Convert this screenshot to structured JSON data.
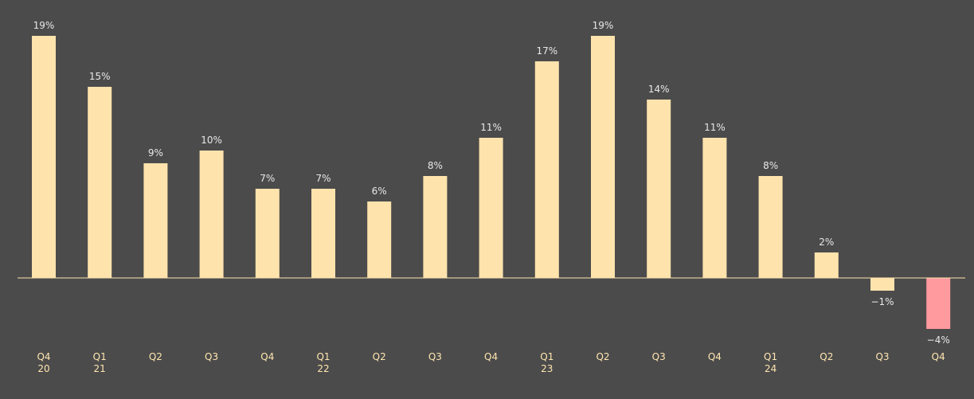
{
  "chart_data": {
    "type": "bar",
    "title": "",
    "xlabel": "",
    "ylabel": "",
    "ylim": [
      -4,
      19
    ],
    "grid": false,
    "legend": "none",
    "categories": [
      {
        "quarter": "Q4",
        "year": "20"
      },
      {
        "quarter": "Q1",
        "year": "21"
      },
      {
        "quarter": "Q2",
        "year": ""
      },
      {
        "quarter": "Q3",
        "year": ""
      },
      {
        "quarter": "Q4",
        "year": ""
      },
      {
        "quarter": "Q1",
        "year": "22"
      },
      {
        "quarter": "Q2",
        "year": ""
      },
      {
        "quarter": "Q3",
        "year": ""
      },
      {
        "quarter": "Q4",
        "year": ""
      },
      {
        "quarter": "Q1",
        "year": "23"
      },
      {
        "quarter": "Q2",
        "year": ""
      },
      {
        "quarter": "Q3",
        "year": ""
      },
      {
        "quarter": "Q4",
        "year": ""
      },
      {
        "quarter": "Q1",
        "year": "24"
      },
      {
        "quarter": "Q2",
        "year": ""
      },
      {
        "quarter": "Q3",
        "year": ""
      },
      {
        "quarter": "Q4",
        "year": ""
      }
    ],
    "values": [
      19,
      15,
      9,
      10,
      7,
      7,
      6,
      8,
      11,
      17,
      19,
      14,
      11,
      8,
      2,
      -1,
      -4
    ],
    "value_labels": [
      "19%",
      "15%",
      "9%",
      "10%",
      "7%",
      "7%",
      "6%",
      "8%",
      "11%",
      "17%",
      "19%",
      "14%",
      "11%",
      "8%",
      "2%",
      "−1%",
      "−4%"
    ],
    "colors": {
      "bar": "#ffe3ad",
      "highlight_bar": "#ff9a9f",
      "baseline": "#ffe3ad",
      "value_text": "#e8e8e8",
      "tick_text": "#ffe6b0",
      "background": "#4b4b4b"
    },
    "highlight_index": 16
  }
}
